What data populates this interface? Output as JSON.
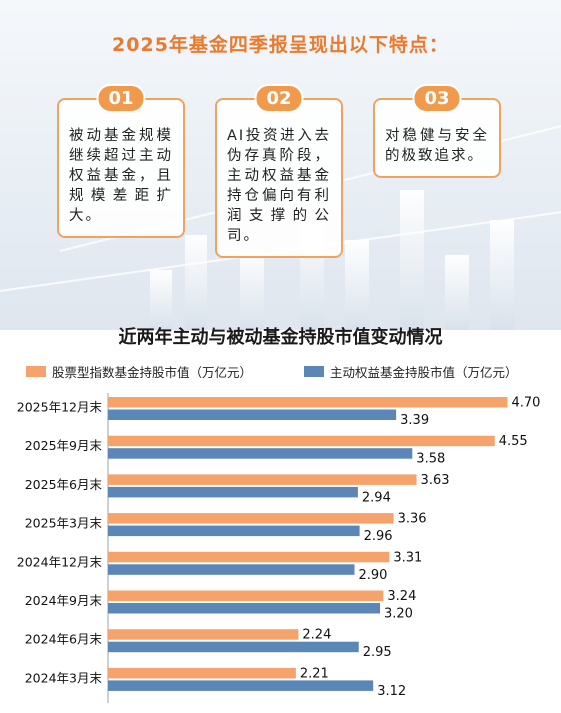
{
  "header": {
    "title": "2025年基金四季报呈现出以下特点："
  },
  "points": [
    {
      "num": "01",
      "text": "被动基金规模继续超过主动权益基金，且规模差距扩大。"
    },
    {
      "num": "02",
      "text": "AI投资进入去伪存真阶段，主动权益基金持仓偏向有利润支撑的公司。"
    },
    {
      "num": "03",
      "text": "对稳健与安全的极致追求。"
    }
  ],
  "colors": {
    "passive": "#f5a36a",
    "active": "#5b87b8",
    "accent": "#e97a2e"
  },
  "chart_data": {
    "type": "bar",
    "orientation": "horizontal",
    "title": "近两年主动与被动基金持股市值变动情况",
    "categories": [
      "2025年12月末",
      "2025年9月末",
      "2025年6月末",
      "2025年3月末",
      "2024年12月末",
      "2024年9月末",
      "2024年6月末",
      "2024年3月末"
    ],
    "series": [
      {
        "name": "股票型指数基金持股市值（万亿元）",
        "values": [
          4.7,
          4.55,
          3.63,
          3.36,
          3.31,
          3.24,
          2.24,
          2.21
        ]
      },
      {
        "name": "主动权益基金持股市值（万亿元）",
        "values": [
          3.39,
          3.58,
          2.94,
          2.96,
          2.9,
          3.2,
          2.95,
          3.12
        ]
      }
    ],
    "value_labels": {
      "passive": [
        "4.70",
        "4.55",
        "3.63",
        "3.36",
        "3.31",
        "3.24",
        "2.24",
        "2.21"
      ],
      "active": [
        "3.39",
        "3.58",
        "2.94",
        "2.96",
        "2.90",
        "3.20",
        "2.95",
        "3.12"
      ]
    },
    "xlim": [
      0,
      5
    ],
    "legend_position": "top",
    "grid": false
  }
}
